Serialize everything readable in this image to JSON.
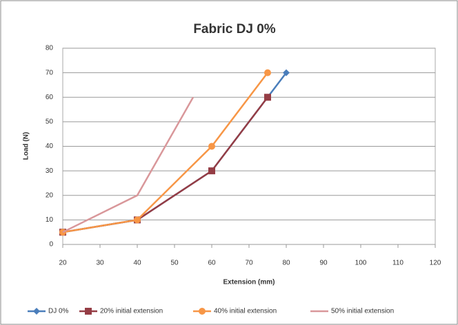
{
  "chart_data": {
    "type": "line",
    "title": "Fabric DJ 0%",
    "x_label": "Extension (mm)",
    "y_label": "Load (N)",
    "xlim": [
      20,
      120
    ],
    "xticks": [
      20,
      30,
      40,
      50,
      60,
      70,
      80,
      90,
      100,
      110,
      120
    ],
    "ylim": [
      0,
      80
    ],
    "yticks": [
      0,
      10,
      20,
      30,
      40,
      50,
      60,
      70,
      80
    ],
    "grid": true,
    "legend": "bottom",
    "series": [
      {
        "name": "DJ 0%",
        "color": "#4a7ebb",
        "marker": "diamond",
        "x": [
          20,
          40,
          60,
          80
        ],
        "values": [
          5,
          10,
          30,
          70
        ]
      },
      {
        "name": "20% initial extension",
        "color": "#953d45",
        "marker": "square",
        "x": [
          20,
          40,
          60,
          75
        ],
        "values": [
          5,
          10,
          30,
          60
        ]
      },
      {
        "name": "40% initial extension",
        "color": "#f79646",
        "marker": "circle",
        "x": [
          20,
          40,
          60,
          75
        ],
        "values": [
          5,
          10,
          40,
          70
        ]
      },
      {
        "name": "50% initial extension",
        "color": "#d9979a",
        "marker": "none",
        "x": [
          20,
          40,
          55
        ],
        "values": [
          5,
          20,
          60
        ]
      }
    ]
  }
}
